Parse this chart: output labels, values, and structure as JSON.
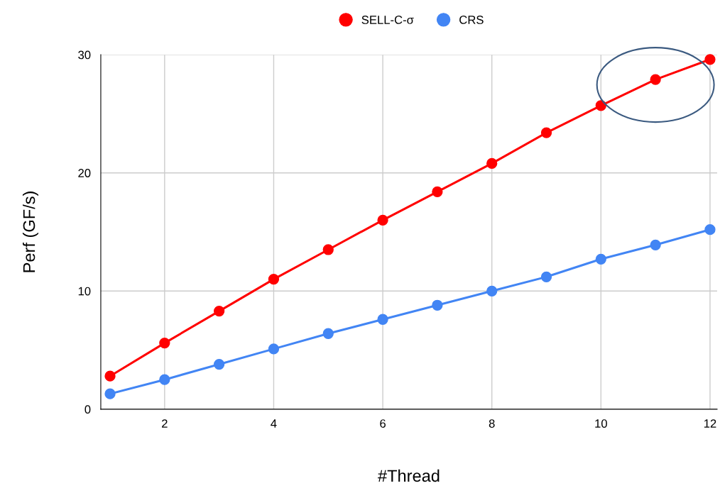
{
  "chart_data": {
    "type": "line",
    "xlabel": "#Thread",
    "ylabel": "Perf (GF/s)",
    "x": [
      1,
      2,
      3,
      4,
      5,
      6,
      7,
      8,
      9,
      10,
      11,
      12
    ],
    "series": [
      {
        "name": "SELL-C-σ",
        "color": "#ff0000",
        "values": [
          2.8,
          5.6,
          8.3,
          11.0,
          13.5,
          16.0,
          18.4,
          20.8,
          23.4,
          25.7,
          27.9,
          29.6
        ]
      },
      {
        "name": "CRS",
        "color": "#4285f4",
        "values": [
          1.3,
          2.5,
          3.8,
          5.1,
          6.4,
          7.6,
          8.8,
          10.0,
          11.2,
          12.7,
          13.9,
          15.2
        ]
      }
    ],
    "xlim": [
      0.83,
      12.13
    ],
    "xticks": [
      2,
      4,
      6,
      8,
      10,
      12
    ],
    "ylim": [
      0,
      30
    ],
    "yticks": [
      0,
      10,
      20,
      30
    ],
    "grid": true,
    "legend": "top",
    "marker": "circle",
    "line_style": "solid"
  }
}
